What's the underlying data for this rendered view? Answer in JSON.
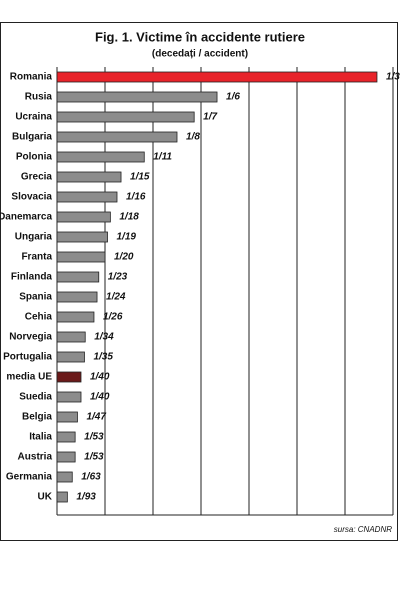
{
  "chart_data": {
    "type": "bar",
    "orientation": "horizontal",
    "title": "Fig. 1. Victime în accidente rutiere",
    "subtitle": "(decedați / accident)",
    "source": "sursa: CNADNR",
    "categories": [
      "Romania",
      "Rusia",
      "Ucraina",
      "Bulgaria",
      "Polonia",
      "Grecia",
      "Slovacia",
      "Danemarca",
      "Ungaria",
      "Franta",
      "Finlanda",
      "Spania",
      "Cehia",
      "Norvegia",
      "Portugalia",
      "media UE",
      "Suedia",
      "Belgia",
      "Italia",
      "Austria",
      "Germania",
      "UK"
    ],
    "values": [
      0.3333,
      0.1667,
      0.1429,
      0.125,
      0.0909,
      0.0667,
      0.0625,
      0.0556,
      0.0526,
      0.05,
      0.0435,
      0.0417,
      0.0385,
      0.0294,
      0.0286,
      0.025,
      0.025,
      0.0213,
      0.0189,
      0.0189,
      0.0159,
      0.0108
    ],
    "value_labels": [
      "1/3",
      "1/6",
      "1/7",
      "1/8",
      "1/11",
      "1/15",
      "1/16",
      "1/18",
      "1/19",
      "1/20",
      "1/23",
      "1/24",
      "1/26",
      "1/34",
      "1/35",
      "1/40",
      "1/40",
      "1/47",
      "1/53",
      "1/53",
      "1/63",
      "1/93"
    ],
    "colors": [
      "#e8232a",
      "#8c8c8c",
      "#8c8c8c",
      "#8c8c8c",
      "#8c8c8c",
      "#8c8c8c",
      "#8c8c8c",
      "#8c8c8c",
      "#8c8c8c",
      "#8c8c8c",
      "#8c8c8c",
      "#8c8c8c",
      "#8c8c8c",
      "#8c8c8c",
      "#8c8c8c",
      "#6b1a1a",
      "#8c8c8c",
      "#8c8c8c",
      "#8c8c8c",
      "#8c8c8c",
      "#8c8c8c",
      "#8c8c8c"
    ],
    "xlim": [
      0,
      0.35
    ],
    "xticks": [
      0,
      0.05,
      0.1,
      0.15,
      0.2,
      0.25,
      0.3,
      0.35
    ],
    "grid": true
  }
}
